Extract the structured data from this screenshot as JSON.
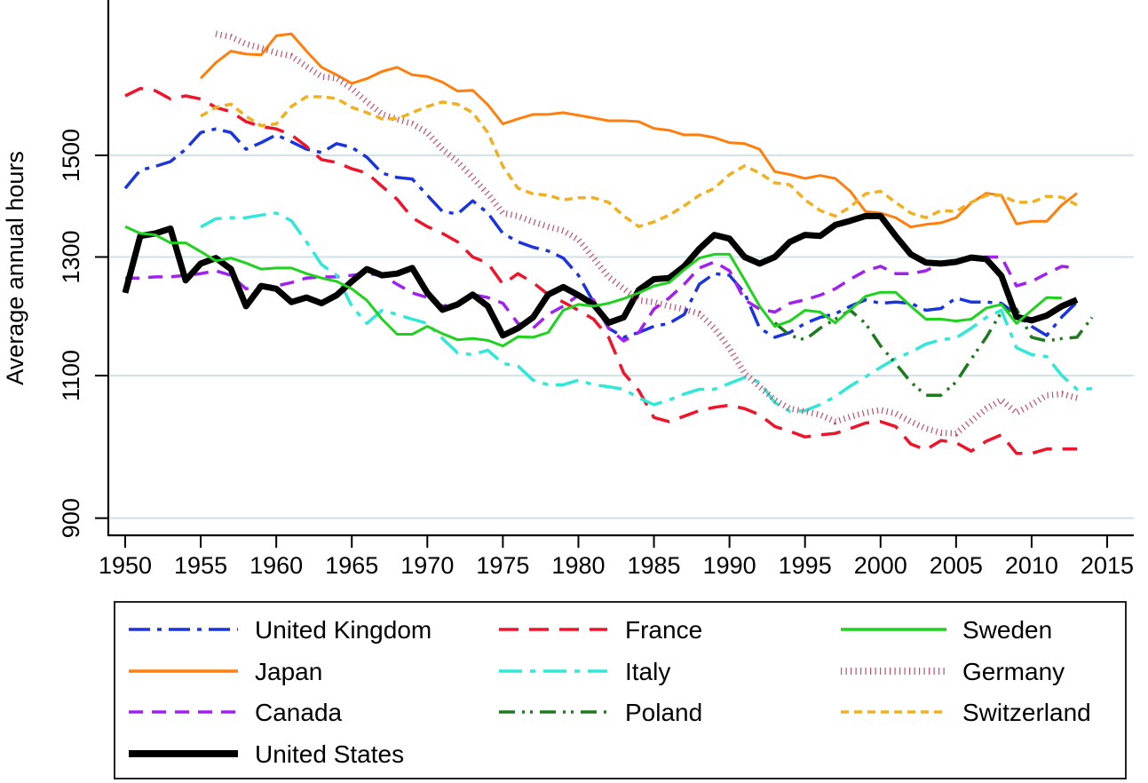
{
  "chart_data": {
    "type": "line",
    "title": "",
    "xlabel": "",
    "ylabel": "Average annual hours",
    "yscale": "log",
    "xlim": [
      1948.8,
      2016.8
    ],
    "ylim": [
      860,
      1850
    ],
    "xticks": [
      1950,
      1955,
      1960,
      1965,
      1970,
      1975,
      1980,
      1985,
      1990,
      1995,
      2000,
      2005,
      2010,
      2015
    ],
    "yticks": [
      900,
      1100,
      1300,
      1500
    ],
    "grid": "horizontal",
    "legend_position": "bottom",
    "series": [
      {
        "name": "United Kingdom",
        "color": "#1a35e0",
        "style": "dash-dot",
        "start": 1950,
        "values": [
          1432,
          1469,
          1477,
          1487,
          1513,
          1549,
          1557,
          1549,
          1513,
          1527,
          1544,
          1529,
          1513,
          1506,
          1525,
          1517,
          1496,
          1463,
          1454,
          1451,
          1418,
          1386,
          1381,
          1407,
          1383,
          1344,
          1328,
          1318,
          1311,
          1298,
          1267,
          1220,
          1176,
          1161,
          1169,
          1179,
          1184,
          1199,
          1251,
          1270,
          1267,
          1236,
          1176,
          1161,
          1169,
          1184,
          1194,
          1200,
          1213,
          1224,
          1218,
          1220,
          1218,
          1206,
          1209,
          1227,
          1220,
          1220,
          1218,
          1199,
          1179,
          1164,
          1195,
          1220
        ]
      },
      {
        "name": "Japan",
        "color": "#ff7f0e",
        "style": "solid",
        "start": 1955,
        "values": [
          1672,
          1709,
          1737,
          1730,
          1728,
          1775,
          1780,
          1737,
          1698,
          1680,
          1660,
          1671,
          1688,
          1698,
          1680,
          1676,
          1663,
          1642,
          1644,
          1611,
          1568,
          1579,
          1589,
          1589,
          1593,
          1587,
          1581,
          1575,
          1575,
          1573,
          1558,
          1554,
          1544,
          1544,
          1538,
          1527,
          1525,
          1513,
          1466,
          1460,
          1452,
          1458,
          1452,
          1426,
          1386,
          1383,
          1374,
          1356,
          1361,
          1364,
          1374,
          1403,
          1422,
          1418,
          1362,
          1367,
          1367,
          1399,
          1422
        ]
      },
      {
        "name": "Canada",
        "color": "#a020f0",
        "style": "dashed",
        "start": 1950,
        "values": [
          1262,
          1262,
          1264,
          1264,
          1267,
          1270,
          1275,
          1267,
          1243,
          1248,
          1248,
          1254,
          1262,
          1264,
          1264,
          1267,
          1270,
          1267,
          1251,
          1236,
          1228,
          1213,
          1218,
          1233,
          1228,
          1218,
          1184,
          1176,
          1199,
          1213,
          1232,
          1224,
          1176,
          1155,
          1169,
          1208,
          1227,
          1251,
          1280,
          1291,
          1275,
          1224,
          1208,
          1203,
          1218,
          1224,
          1232,
          1243,
          1260,
          1275,
          1283,
          1270,
          1270,
          1275,
          1289,
          1291,
          1299,
          1300,
          1300,
          1248,
          1256,
          1270,
          1283,
          1280
        ]
      },
      {
        "name": "France",
        "color": "#f0142a",
        "style": "long-dash",
        "start": 1950,
        "values": [
          1631,
          1648,
          1643,
          1624,
          1631,
          1624,
          1605,
          1595,
          1573,
          1562,
          1557,
          1544,
          1519,
          1491,
          1485,
          1472,
          1463,
          1436,
          1410,
          1374,
          1357,
          1344,
          1328,
          1300,
          1289,
          1251,
          1270,
          1254,
          1233,
          1220,
          1206,
          1191,
          1161,
          1104,
          1077,
          1037,
          1031,
          1039,
          1047,
          1052,
          1055,
          1050,
          1041,
          1024,
          1017,
          1009,
          1012,
          1014,
          1021,
          1029,
          1031,
          1024,
          999,
          991,
          1004,
          1001,
          989,
          1003,
          1012,
          986,
          986,
          992,
          992,
          992
        ]
      },
      {
        "name": "Italy",
        "color": "#30e8d8",
        "style": "long-dash-dot",
        "start": 1955,
        "values": [
          1356,
          1372,
          1374,
          1374,
          1379,
          1383,
          1368,
          1328,
          1286,
          1267,
          1213,
          1184,
          1206,
          1199,
          1191,
          1184,
          1159,
          1136,
          1133,
          1140,
          1119,
          1115,
          1093,
          1086,
          1086,
          1093,
          1086,
          1083,
          1079,
          1066,
          1056,
          1063,
          1072,
          1079,
          1079,
          1088,
          1097,
          1090,
          1059,
          1046,
          1047,
          1056,
          1068,
          1084,
          1098,
          1113,
          1127,
          1137,
          1150,
          1157,
          1160,
          1176,
          1194,
          1206,
          1144,
          1133,
          1130,
          1100,
          1079,
          1080
        ]
      },
      {
        "name": "Poland",
        "color": "#1e7a1e",
        "style": "dash-dot-dot",
        "start": 1993,
        "values": [
          1185,
          1164,
          1157,
          1176,
          1191,
          1206,
          1184,
          1147,
          1119,
          1090,
          1070,
          1070,
          1090,
          1126,
          1161,
          1203,
          1208,
          1161,
          1155,
          1159,
          1161,
          1194
        ]
      },
      {
        "name": "United States",
        "color": "#000000",
        "style": "thick-solid",
        "start": 1950,
        "values": [
          1236,
          1339,
          1344,
          1353,
          1258,
          1288,
          1298,
          1278,
          1213,
          1248,
          1243,
          1220,
          1228,
          1218,
          1232,
          1256,
          1278,
          1267,
          1270,
          1280,
          1236,
          1207,
          1216,
          1233,
          1213,
          1164,
          1176,
          1194,
          1233,
          1246,
          1232,
          1216,
          1185,
          1194,
          1241,
          1260,
          1262,
          1283,
          1315,
          1341,
          1334,
          1300,
          1288,
          1300,
          1328,
          1341,
          1339,
          1360,
          1368,
          1377,
          1377,
          1339,
          1305,
          1290,
          1288,
          1291,
          1299,
          1296,
          1266,
          1195,
          1189,
          1197,
          1213,
          1224
        ]
      },
      {
        "name": "Sweden",
        "color": "#1ed21e",
        "style": "solid",
        "start": 1950,
        "values": [
          1357,
          1344,
          1341,
          1326,
          1326,
          1310,
          1293,
          1298,
          1289,
          1278,
          1280,
          1280,
          1270,
          1262,
          1256,
          1243,
          1223,
          1191,
          1166,
          1166,
          1179,
          1167,
          1157,
          1159,
          1156,
          1147,
          1162,
          1161,
          1169,
          1206,
          1216,
          1213,
          1218,
          1226,
          1236,
          1248,
          1254,
          1277,
          1298,
          1305,
          1305,
          1259,
          1213,
          1179,
          1188,
          1206,
          1203,
          1185,
          1207,
          1230,
          1237,
          1237,
          1213,
          1191,
          1191,
          1188,
          1191,
          1210,
          1216,
          1184,
          1206,
          1228,
          1227
        ]
      },
      {
        "name": "Germany",
        "color": "#c0506e",
        "style": "dotted",
        "start": 1956,
        "values": [
          1780,
          1772,
          1755,
          1745,
          1733,
          1725,
          1700,
          1676,
          1672,
          1648,
          1617,
          1590,
          1578,
          1568,
          1549,
          1513,
          1487,
          1454,
          1421,
          1383,
          1377,
          1366,
          1357,
          1349,
          1332,
          1298,
          1264,
          1243,
          1223,
          1220,
          1213,
          1208,
          1200,
          1176,
          1143,
          1104,
          1083,
          1063,
          1050,
          1046,
          1041,
          1031,
          1038,
          1044,
          1048,
          1043,
          1031,
          1021,
          1015,
          1014,
          1032,
          1050,
          1063,
          1044,
          1056,
          1070,
          1072,
          1066
        ]
      },
      {
        "name": "Switzerland",
        "color": "#f0b020",
        "style": "short-dash",
        "start": 1955,
        "values": [
          1585,
          1605,
          1612,
          1585,
          1564,
          1568,
          1607,
          1629,
          1629,
          1625,
          1605,
          1593,
          1579,
          1579,
          1593,
          1607,
          1617,
          1612,
          1593,
          1549,
          1477,
          1432,
          1421,
          1418,
          1409,
          1413,
          1413,
          1404,
          1377,
          1357,
          1366,
          1379,
          1397,
          1418,
          1432,
          1460,
          1478,
          1463,
          1443,
          1439,
          1409,
          1388,
          1377,
          1395,
          1421,
          1426,
          1404,
          1383,
          1374,
          1388,
          1386,
          1404,
          1418,
          1418,
          1404,
          1404,
          1416,
          1414,
          1399
        ]
      }
    ],
    "legend_order": [
      "United Kingdom",
      "France",
      "Sweden",
      "Japan",
      "Italy",
      "Germany",
      "Canada",
      "Poland",
      "Switzerland",
      "United States"
    ]
  }
}
